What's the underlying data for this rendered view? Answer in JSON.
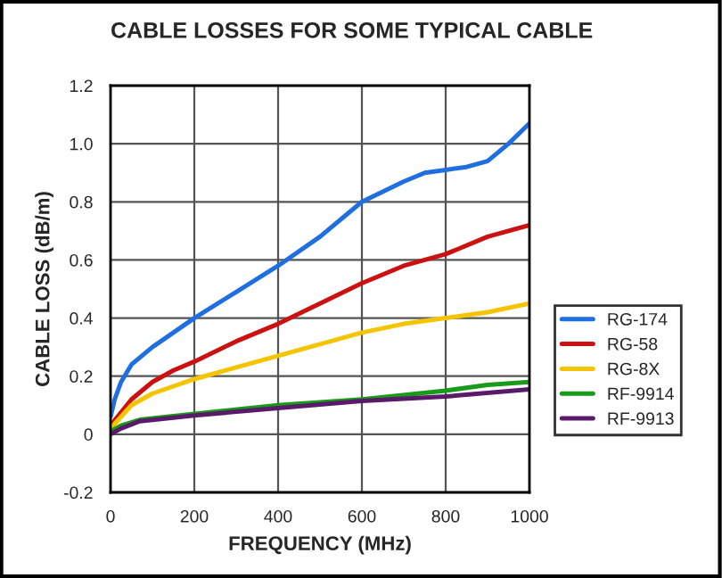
{
  "chart_data": {
    "type": "line",
    "title": "CABLE LOSSES FOR SOME TYPICAL CABLE",
    "xlabel": "FREQUENCY (MHz)",
    "ylabel": "CABLE LOSS (dB/m)",
    "xlim": [
      0,
      1000
    ],
    "xticks": [
      0,
      200,
      400,
      600,
      800,
      1000
    ],
    "ylim": [
      -0.2,
      1.2
    ],
    "yticks": [
      -0.2,
      0,
      0.2,
      0.4,
      0.6,
      0.8,
      {
        "value": 1.0,
        "label": "1.0"
      },
      1.2
    ],
    "grid": true,
    "legend": "right",
    "marker": "none",
    "line_style": "solid",
    "series": [
      {
        "name": "RG-174",
        "color": "#1f6fe0",
        "x": [
          0,
          10,
          25,
          50,
          100,
          150,
          200,
          300,
          400,
          500,
          600,
          700,
          750,
          800,
          850,
          900,
          950,
          1000
        ],
        "values": [
          0.06,
          0.12,
          0.18,
          0.24,
          0.3,
          0.35,
          0.4,
          0.49,
          0.58,
          0.68,
          0.8,
          0.87,
          0.9,
          0.91,
          0.92,
          0.94,
          1.0,
          1.07
        ]
      },
      {
        "name": "RG-58",
        "color": "#cc1111",
        "x": [
          0,
          50,
          100,
          150,
          200,
          300,
          400,
          500,
          600,
          700,
          800,
          900,
          1000
        ],
        "values": [
          0.03,
          0.12,
          0.18,
          0.22,
          0.25,
          0.32,
          0.38,
          0.45,
          0.52,
          0.58,
          0.62,
          0.68,
          0.72
        ]
      },
      {
        "name": "RG-8X",
        "color": "#f5c400",
        "x": [
          0,
          50,
          100,
          200,
          300,
          400,
          500,
          600,
          700,
          800,
          900,
          1000
        ],
        "values": [
          0.02,
          0.1,
          0.14,
          0.19,
          0.23,
          0.27,
          0.31,
          0.35,
          0.38,
          0.4,
          0.42,
          0.45
        ]
      },
      {
        "name": "RF-9914",
        "color": "#1a9a1a",
        "x": [
          0,
          25,
          70,
          200,
          400,
          600,
          800,
          900,
          1000
        ],
        "values": [
          0.01,
          0.03,
          0.05,
          0.07,
          0.1,
          0.12,
          0.15,
          0.17,
          0.18
        ]
      },
      {
        "name": "RF-9913",
        "color": "#5a1a6a",
        "x": [
          0,
          25,
          70,
          200,
          400,
          600,
          800,
          1000
        ],
        "values": [
          0.0,
          0.02,
          0.045,
          0.065,
          0.09,
          0.115,
          0.13,
          0.155
        ]
      }
    ]
  }
}
